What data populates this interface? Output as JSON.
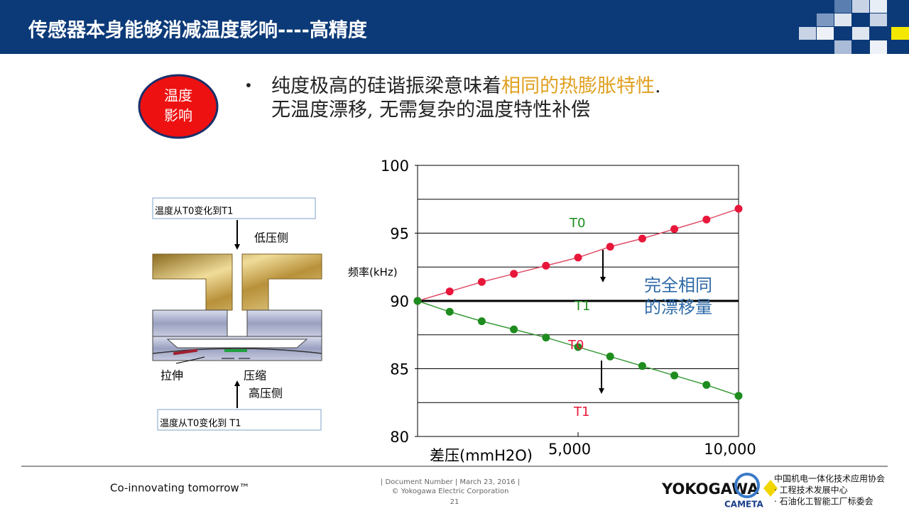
{
  "header": {
    "title": "传感器本身能够消减温度影响----高精度"
  },
  "badge": {
    "line1": "温度",
    "line2": "影响"
  },
  "bullet": {
    "line1_start": "纯度极高的硅谐振梁意味着",
    "line1_highlight": "相同的热膨胀特性",
    "line1_end": ".",
    "line2": "无温度漂移, 无需复杂的温度特性补偿"
  },
  "diagram": {
    "top_box": "温度从T0变化到T1",
    "low_side": "低压侧",
    "stretch": "拉伸",
    "compress": "压缩",
    "high_side": "高压侧",
    "bottom_box": "温度从T0变化到 T1"
  },
  "chart_data": {
    "type": "line",
    "x_label": "差压(mmH2O)",
    "y_label": "频率(kHz)",
    "x": [
      0,
      1000,
      2000,
      3000,
      4000,
      5000,
      6000,
      7000,
      8000,
      9000,
      10000
    ],
    "series": [
      {
        "name": "T0",
        "color": "#e8173a",
        "line_color": "#e0506a",
        "values": [
          90,
          90.7,
          91.4,
          92.0,
          92.6,
          93.2,
          94.0,
          94.6,
          95.3,
          96.0,
          96.8
        ]
      },
      {
        "name": "T1",
        "color": "#1e8c1e",
        "line_color": "#3a9a3a",
        "values": [
          90,
          89.2,
          88.5,
          87.9,
          87.3,
          86.6,
          85.9,
          85.2,
          84.5,
          83.8,
          83.0
        ]
      }
    ],
    "xlim": [
      0,
      10000
    ],
    "ylim": [
      80,
      100
    ],
    "xticks": [
      {
        "value": 5000,
        "label": "5,000"
      },
      {
        "value": 10000,
        "label": "10,000"
      }
    ],
    "yticks": [
      80,
      85,
      90,
      95,
      100
    ],
    "ygrid": [
      82.5,
      85,
      87.5,
      90,
      92.5,
      95,
      97.5
    ],
    "reference_line": 90,
    "annotations": [
      {
        "text": "T0",
        "color": "#1e8c1e"
      },
      {
        "text": "T1",
        "color": "#1e8c1e"
      },
      {
        "text": "T0",
        "color": "#e8173a"
      },
      {
        "text": "T1",
        "color": "#e8173a"
      },
      {
        "text": "完全相同",
        "color": "#2e6aa8"
      },
      {
        "text": "的漂移量",
        "color": "#2e6aa8"
      }
    ]
  },
  "footer": {
    "slogan": "Co-innovating tomorrow™",
    "doc": "| Document Number | March 23, 2016 |",
    "copyright": "© Yokogawa Electric Corporation",
    "page": "21",
    "brand": "YOKOGAWA",
    "cameta": "CAMETA",
    "org1": "中国机电一体化技术应用协会",
    "org2": "· 工程技术发展中心",
    "org3": "· 石油化工智能工厂标委会"
  }
}
